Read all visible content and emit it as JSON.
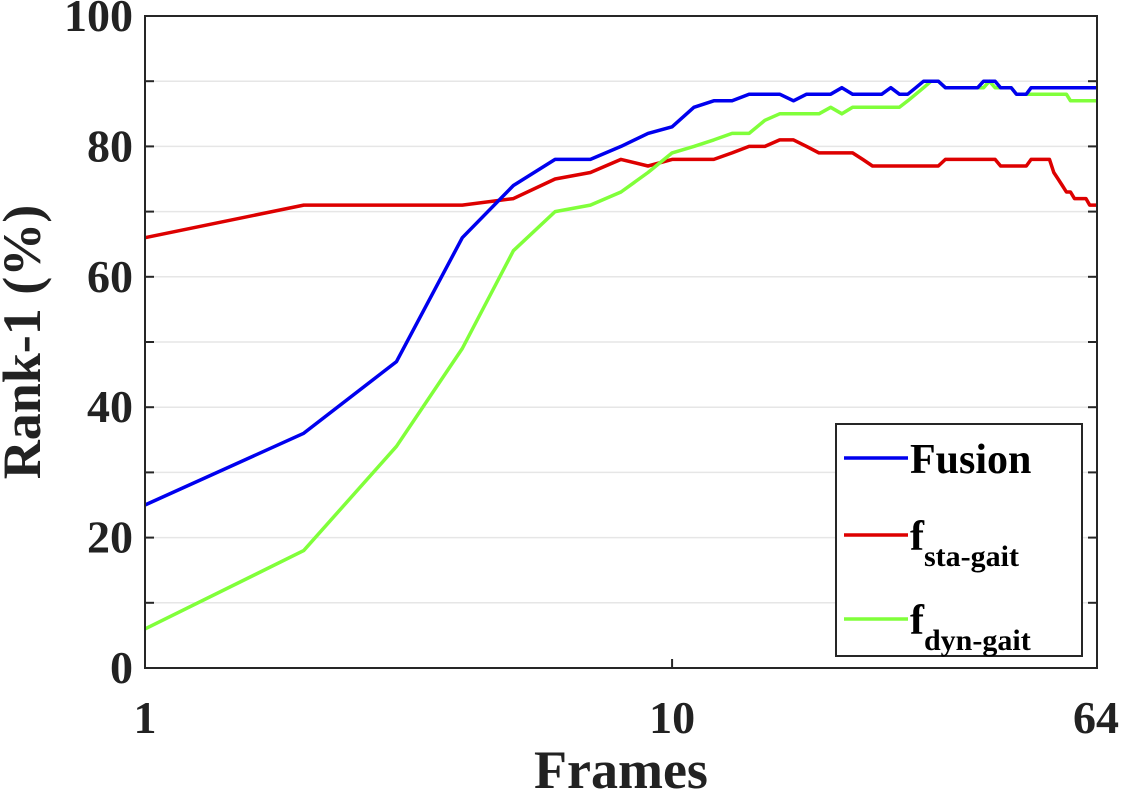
{
  "chart_data": {
    "type": "line",
    "xlabel": "Frames",
    "ylabel": "Rank-1 (%)",
    "xscale": "log",
    "xlim": [
      1,
      64
    ],
    "ylim": [
      0,
      100
    ],
    "xticks": [
      1,
      10,
      64
    ],
    "xtick_labels": [
      "1",
      "10",
      "64"
    ],
    "yticks": [
      0,
      20,
      40,
      60,
      80,
      100
    ],
    "ytick_labels": [
      "0",
      "20",
      "40",
      "60",
      "80",
      "100"
    ],
    "grid": true,
    "legend_position": "bottom-right",
    "series": [
      {
        "name": "Fusion",
        "color": "#0000ee",
        "x": [
          1,
          2,
          3,
          4,
          5,
          6,
          7,
          8,
          9,
          10,
          11,
          12,
          13,
          14,
          15,
          16,
          17,
          18,
          19,
          20,
          21,
          22,
          23,
          24,
          25,
          26,
          27,
          28,
          29,
          30,
          31,
          32,
          33,
          34,
          35,
          36,
          37,
          38,
          39,
          40,
          41,
          42,
          43,
          44,
          45,
          46,
          47,
          48,
          49,
          50,
          51,
          52,
          53,
          54,
          55,
          56,
          57,
          58,
          59,
          60,
          61,
          62,
          63,
          64
        ],
        "values": [
          25,
          36,
          47,
          66,
          74,
          78,
          78,
          80,
          82,
          83,
          86,
          87,
          87,
          88,
          88,
          88,
          87,
          88,
          88,
          88,
          89,
          88,
          88,
          88,
          88,
          89,
          88,
          88,
          89,
          90,
          90,
          90,
          89,
          89,
          89,
          89,
          89,
          89,
          90,
          90,
          90,
          89,
          89,
          89,
          88,
          88,
          88,
          89,
          89,
          89,
          89,
          89,
          89,
          89,
          89,
          89,
          89,
          89,
          89,
          89,
          89,
          89,
          89,
          89
        ]
      },
      {
        "name": "f_sta-gait",
        "name_main": "f",
        "name_sub": "sta-gait",
        "color": "#dd0000",
        "x": [
          1,
          2,
          3,
          4,
          5,
          6,
          7,
          8,
          9,
          10,
          11,
          12,
          13,
          14,
          15,
          16,
          17,
          18,
          19,
          20,
          21,
          22,
          23,
          24,
          25,
          26,
          27,
          28,
          29,
          30,
          31,
          32,
          33,
          34,
          35,
          36,
          37,
          38,
          39,
          40,
          41,
          42,
          43,
          44,
          45,
          46,
          47,
          48,
          49,
          50,
          51,
          52,
          53,
          54,
          55,
          56,
          57,
          58,
          59,
          60,
          61,
          62,
          63,
          64
        ],
        "values": [
          66,
          71,
          71,
          71,
          72,
          75,
          76,
          78,
          77,
          78,
          78,
          78,
          79,
          80,
          80,
          81,
          81,
          80,
          79,
          79,
          79,
          79,
          78,
          77,
          77,
          77,
          77,
          77,
          77,
          77,
          77,
          77,
          78,
          78,
          78,
          78,
          78,
          78,
          78,
          78,
          78,
          77,
          77,
          77,
          77,
          77,
          77,
          78,
          78,
          78,
          78,
          78,
          76,
          75,
          74,
          73,
          73,
          72,
          72,
          72,
          72,
          71,
          71,
          71
        ]
      },
      {
        "name": "f_dyn-gait",
        "name_main": "f",
        "name_sub": "dyn-gait",
        "color": "#80ff3a",
        "x": [
          1,
          2,
          3,
          4,
          5,
          6,
          7,
          8,
          9,
          10,
          11,
          12,
          13,
          14,
          15,
          16,
          17,
          18,
          19,
          20,
          21,
          22,
          23,
          24,
          25,
          26,
          27,
          28,
          29,
          30,
          31,
          32,
          33,
          34,
          35,
          36,
          37,
          38,
          39,
          40,
          41,
          42,
          43,
          44,
          45,
          46,
          47,
          48,
          49,
          50,
          51,
          52,
          53,
          54,
          55,
          56,
          57,
          58,
          59,
          60,
          61,
          62,
          63,
          64
        ],
        "values": [
          6,
          18,
          34,
          49,
          64,
          70,
          71,
          73,
          76,
          79,
          80,
          81,
          82,
          82,
          84,
          85,
          85,
          85,
          85,
          86,
          85,
          86,
          86,
          86,
          86,
          86,
          86,
          87,
          88,
          89,
          90,
          90,
          89,
          89,
          89,
          89,
          89,
          89,
          89,
          90,
          89,
          89,
          89,
          89,
          88,
          88,
          88,
          88,
          88,
          88,
          88,
          88,
          88,
          88,
          88,
          88,
          87,
          87,
          87,
          87,
          87,
          87,
          87,
          87
        ]
      }
    ]
  }
}
